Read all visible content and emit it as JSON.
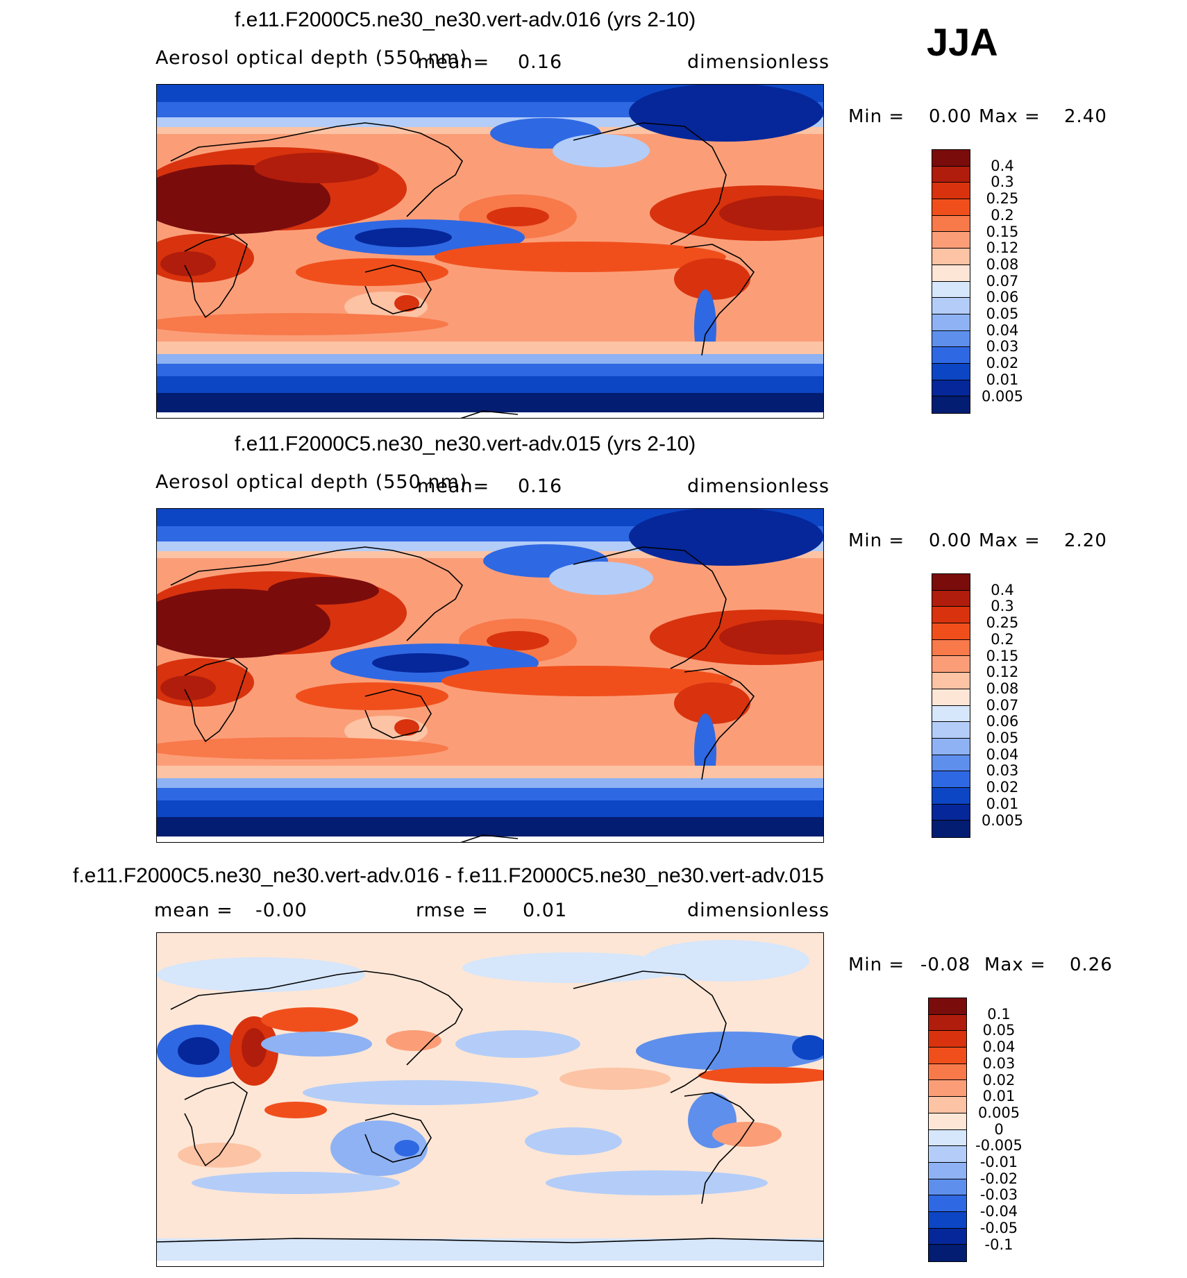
{
  "season": "JJA",
  "panels": [
    {
      "title": "f.e11.F2000C5.ne30_ne30.vert-adv.016 (yrs 2-10)",
      "variable": "Aerosol optical depth (550 nm)",
      "mean_label": "mean=",
      "mean_value": "0.16",
      "units": "dimensionless",
      "min_label": "Min =",
      "min_value": "0.00",
      "max_label": "Max =",
      "max_value": "2.40",
      "colorbar_levels": [
        "0.4",
        "0.3",
        "0.25",
        "0.2",
        "0.15",
        "0.12",
        "0.08",
        "0.07",
        "0.06",
        "0.05",
        "0.04",
        "0.03",
        "0.02",
        "0.01",
        "0.005"
      ],
      "colors": [
        "#7a0c0c",
        "#b01d0c",
        "#d8330e",
        "#f04f1c",
        "#f8794a",
        "#fb9e78",
        "#fcc3a4",
        "#fde6d6",
        "#d6e6fb",
        "#b3cdf8",
        "#8eb2f3",
        "#5e8fec",
        "#2f68e3",
        "#0d46c4",
        "#05279a",
        "#031d72"
      ]
    },
    {
      "title": "f.e11.F2000C5.ne30_ne30.vert-adv.015 (yrs 2-10)",
      "variable": "Aerosol optical depth (550 nm)",
      "mean_label": "mean=",
      "mean_value": "0.16",
      "units": "dimensionless",
      "min_label": "Min =",
      "min_value": "0.00",
      "max_label": "Max =",
      "max_value": "2.20",
      "colorbar_levels": [
        "0.4",
        "0.3",
        "0.25",
        "0.2",
        "0.15",
        "0.12",
        "0.08",
        "0.07",
        "0.06",
        "0.05",
        "0.04",
        "0.03",
        "0.02",
        "0.01",
        "0.005"
      ],
      "colors": [
        "#7a0c0c",
        "#b01d0c",
        "#d8330e",
        "#f04f1c",
        "#f8794a",
        "#fb9e78",
        "#fcc3a4",
        "#fde6d6",
        "#d6e6fb",
        "#b3cdf8",
        "#8eb2f3",
        "#5e8fec",
        "#2f68e3",
        "#0d46c4",
        "#05279a",
        "#031d72"
      ]
    },
    {
      "title": "f.e11.F2000C5.ne30_ne30.vert-adv.016 - f.e11.F2000C5.ne30_ne30.vert-adv.015",
      "mean_label": "mean =",
      "mean_value": "-0.00",
      "rmse_label": "rmse =",
      "rmse_value": "0.01",
      "units": "dimensionless",
      "min_label": "Min =",
      "min_value": "-0.08",
      "max_label": "Max =",
      "max_value": "0.26",
      "colorbar_levels": [
        "0.1",
        "0.05",
        "0.04",
        "0.03",
        "0.02",
        "0.01",
        "0.005",
        "0",
        "-0.005",
        "-0.01",
        "-0.02",
        "-0.03",
        "-0.04",
        "-0.05",
        "-0.1"
      ],
      "colors": [
        "#7a0c0c",
        "#b01d0c",
        "#d8330e",
        "#f04f1c",
        "#f8794a",
        "#fb9e78",
        "#fcc3a4",
        "#fde6d6",
        "#d6e6fb",
        "#b3cdf8",
        "#8eb2f3",
        "#5e8fec",
        "#2f68e3",
        "#0d46c4",
        "#05279a",
        "#031d72"
      ]
    }
  ]
}
